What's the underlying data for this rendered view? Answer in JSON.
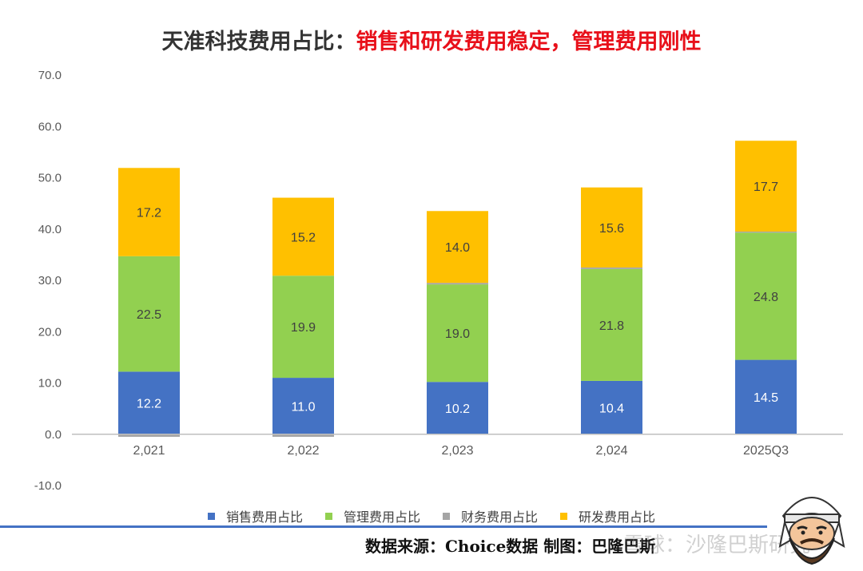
{
  "title": {
    "prefix": "天准科技费用占比：",
    "highlight": "销售和研发费用稳定，管理费用刚性",
    "highlight_color": "#e8101a"
  },
  "chart_data": {
    "type": "bar",
    "stacked": true,
    "categories": [
      "2,021",
      "2,022",
      "2,023",
      "2,024",
      "2025Q3"
    ],
    "series": [
      {
        "name": "销售费用占比",
        "color": "#4472c4",
        "label_color": "#ffffff",
        "values": [
          12.2,
          11.0,
          10.2,
          10.4,
          14.5
        ]
      },
      {
        "name": "管理费用占比",
        "color": "#92d050",
        "label_color": "#404040",
        "values": [
          22.5,
          19.9,
          19.0,
          21.8,
          24.8
        ]
      },
      {
        "name": "财务费用占比",
        "color": "#a5a5a5",
        "label_color": "#404040",
        "values": [
          -0.5,
          -0.5,
          0.3,
          0.3,
          0.2
        ],
        "show_labels": false
      },
      {
        "name": "研发费用占比",
        "color": "#ffc000",
        "label_color": "#404040",
        "values": [
          17.2,
          15.2,
          14.0,
          15.6,
          17.7
        ]
      }
    ],
    "y_ticks": [
      "70.0",
      "60.0",
      "50.0",
      "40.0",
      "30.0",
      "20.0",
      "10.0",
      "0.0",
      "-10.0"
    ],
    "ylim": [
      -10,
      70
    ],
    "legend_position": "bottom",
    "grid": false
  },
  "footer": {
    "source": "数据来源：Choice数据   制图：巴隆巴斯",
    "watermark": "雪球：沙隆巴斯研究"
  },
  "icons": {
    "mascot": "bearded-man-mascot-icon"
  }
}
